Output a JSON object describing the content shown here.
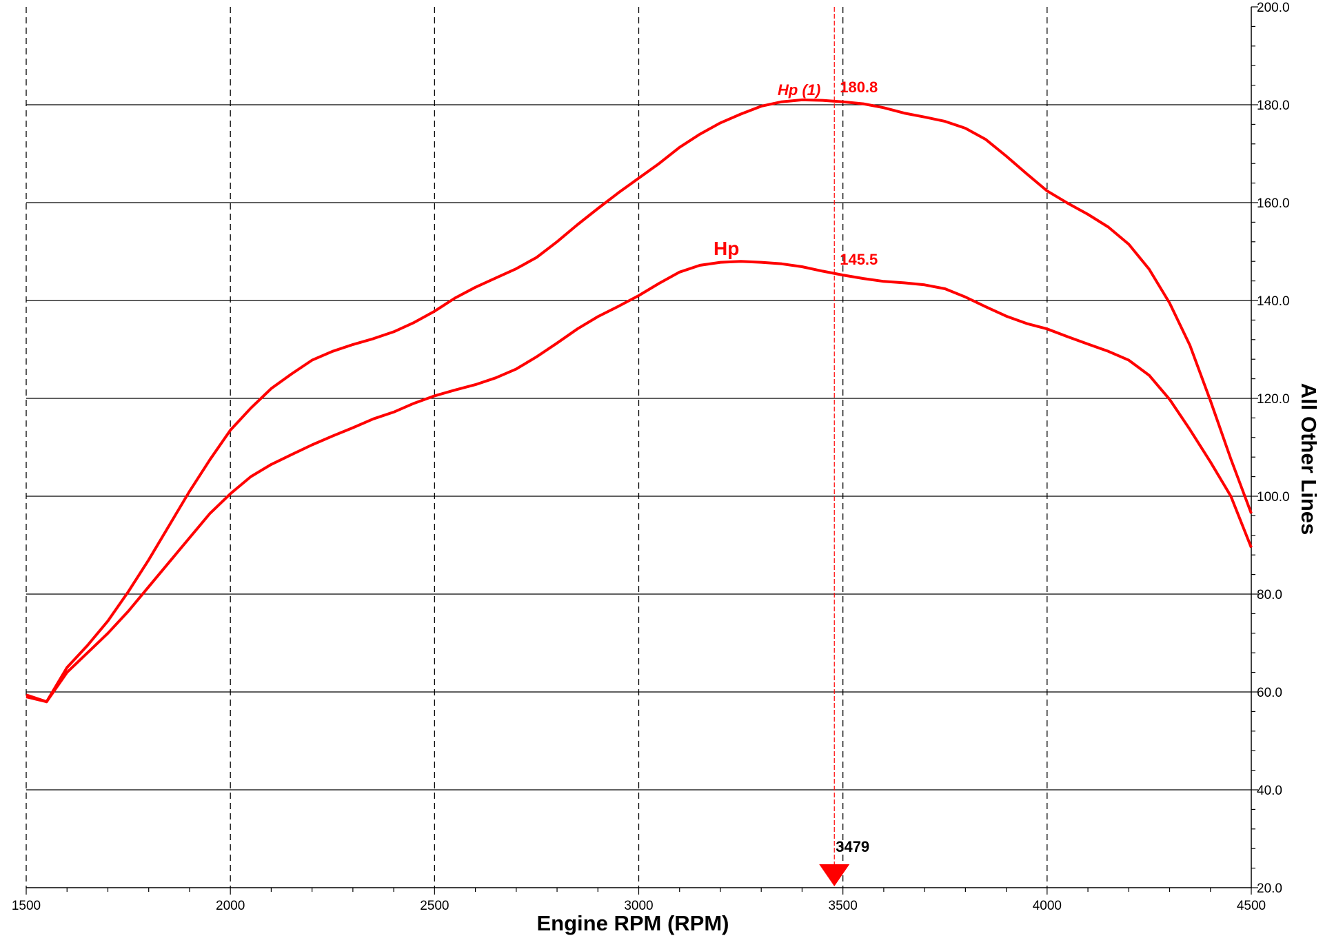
{
  "chart_data": {
    "type": "line",
    "xlabel": "Engine RPM (RPM)",
    "ylabel": "All Other Lines",
    "xlim": [
      1500,
      4500
    ],
    "ylim": [
      20,
      200
    ],
    "x_ticks": [
      "1500",
      "2000",
      "2500",
      "3000",
      "3500",
      "4000",
      "4500"
    ],
    "y_ticks": [
      "20.0",
      "40.0",
      "60.0",
      "80.0",
      "100.0",
      "120.0",
      "140.0",
      "160.0",
      "180.0",
      "200.0"
    ],
    "vertical_grid": "dashed",
    "horizontal_grid": "solid",
    "y_axis_side": "right",
    "cursor": {
      "x": 3479,
      "label": "3479",
      "color": "#ff0000"
    },
    "series": [
      {
        "name": "Hp (1)",
        "color": "#ff0000",
        "cursor_value": "180.8",
        "x": [
          1500,
          1550,
          1600,
          1650,
          1700,
          1750,
          1800,
          1850,
          1900,
          1950,
          2000,
          2050,
          2100,
          2150,
          2200,
          2250,
          2300,
          2350,
          2400,
          2450,
          2500,
          2550,
          2600,
          2650,
          2700,
          2750,
          2800,
          2850,
          2900,
          2950,
          3000,
          3050,
          3100,
          3150,
          3200,
          3250,
          3300,
          3350,
          3400,
          3450,
          3500,
          3550,
          3600,
          3650,
          3700,
          3750,
          3800,
          3850,
          3900,
          3950,
          4000,
          4050,
          4100,
          4150,
          4200,
          4250,
          4300,
          4350,
          4400,
          4450,
          4500
        ],
        "values": [
          59.4,
          58.0,
          65.0,
          69.5,
          74.5,
          80.5,
          87.0,
          94.0,
          101.0,
          107.5,
          113.5,
          118.0,
          122.0,
          125.0,
          127.8,
          129.6,
          131.0,
          132.2,
          133.6,
          135.5,
          137.8,
          140.5,
          142.7,
          144.6,
          146.5,
          148.8,
          152.0,
          155.5,
          158.8,
          162.0,
          165.0,
          168.0,
          171.3,
          174.0,
          176.3,
          178.1,
          179.7,
          180.6,
          181.0,
          180.9,
          180.6,
          180.2,
          179.4,
          178.3,
          177.5,
          176.6,
          175.2,
          172.9,
          169.5,
          165.9,
          162.4,
          159.9,
          157.6,
          155.0,
          151.5,
          146.4,
          139.5,
          130.8,
          119.5,
          107.6,
          96.5
        ]
      },
      {
        "name": "Hp",
        "color": "#ff0000",
        "cursor_value": "145.5",
        "x": [
          1500,
          1550,
          1600,
          1650,
          1700,
          1750,
          1800,
          1850,
          1900,
          1950,
          2000,
          2050,
          2100,
          2150,
          2200,
          2250,
          2300,
          2350,
          2400,
          2450,
          2500,
          2550,
          2600,
          2650,
          2700,
          2750,
          2800,
          2850,
          2900,
          2950,
          3000,
          3050,
          3100,
          3150,
          3200,
          3250,
          3300,
          3350,
          3400,
          3450,
          3500,
          3550,
          3600,
          3650,
          3700,
          3750,
          3800,
          3850,
          3900,
          3950,
          4000,
          4050,
          4100,
          4150,
          4200,
          4250,
          4300,
          4350,
          4400,
          4450,
          4500
        ],
        "values": [
          59.0,
          58.0,
          64.0,
          68.0,
          72.0,
          76.5,
          81.5,
          86.5,
          91.5,
          96.5,
          100.5,
          104.0,
          106.5,
          108.5,
          110.5,
          112.3,
          114.0,
          115.8,
          117.2,
          119.0,
          120.5,
          121.7,
          122.8,
          124.2,
          126.0,
          128.5,
          131.3,
          134.2,
          136.7,
          138.8,
          141.0,
          143.5,
          145.8,
          147.2,
          147.8,
          148.0,
          147.8,
          147.5,
          146.9,
          146.0,
          145.2,
          144.5,
          143.9,
          143.6,
          143.2,
          142.4,
          140.7,
          138.7,
          136.8,
          135.3,
          134.2,
          132.6,
          131.1,
          129.6,
          127.8,
          124.7,
          119.8,
          113.6,
          107.0,
          100.0,
          89.5
        ]
      }
    ]
  }
}
